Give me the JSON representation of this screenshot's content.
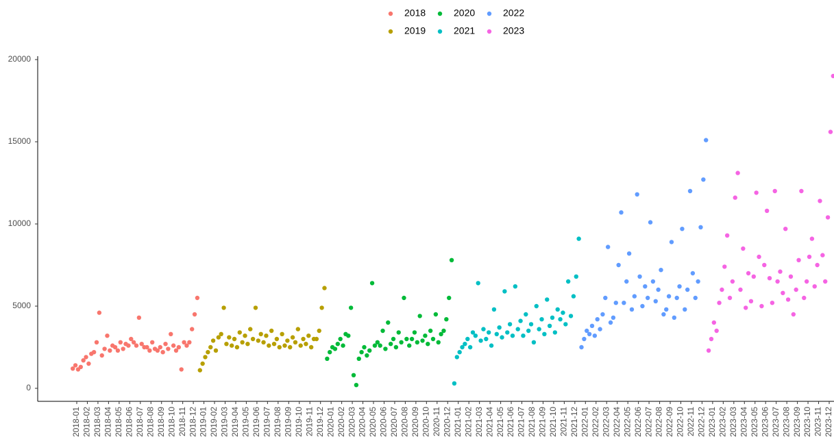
{
  "chart_data": {
    "type": "scatter",
    "xticks": [
      "2018-01",
      "2018-02",
      "2018-03",
      "2018-04",
      "2018-05",
      "2018-06",
      "2018-07",
      "2018-08",
      "2018-09",
      "2018-10",
      "2018-11",
      "2018-12",
      "2019-01",
      "2019-02",
      "2019-03",
      "2019-04",
      "2019-05",
      "2019-06",
      "2019-07",
      "2019-08",
      "2019-09",
      "2019-10",
      "2019-11",
      "2019-12",
      "2020-01",
      "2020-02",
      "2020-03",
      "2020-04",
      "2020-05",
      "2020-06",
      "2020-07",
      "2020-08",
      "2020-09",
      "2020-10",
      "2020-11",
      "2020-12",
      "2021-01",
      "2021-02",
      "2021-03",
      "2021-04",
      "2021-05",
      "2021-06",
      "2021-07",
      "2021-08",
      "2021-09",
      "2021-10",
      "2021-11",
      "2021-12",
      "2022-01",
      "2022-02",
      "2022-03",
      "2022-04",
      "2022-05",
      "2022-06",
      "2022-07",
      "2022-08",
      "2022-09",
      "2022-10",
      "2022-11",
      "2022-12",
      "2023-01",
      "2023-02",
      "2023-03",
      "2023-04",
      "2023-05",
      "2023-06",
      "2023-07",
      "2023-08",
      "2023-09",
      "2023-10",
      "2023-11",
      "2023-12"
    ],
    "ylim": [
      0,
      20000
    ],
    "yticks": [
      0,
      5000,
      10000,
      15000,
      20000
    ],
    "grid": false,
    "legend": "top",
    "series": [
      {
        "name": "2018",
        "color": "#F8766D",
        "x": [
          "2018-01",
          "2018-02",
          "2018-03",
          "2018-04",
          "2018-05",
          "2018-06",
          "2018-07",
          "2018-08",
          "2018-09",
          "2018-10",
          "2018-11",
          "2018-12"
        ],
        "values": [
          [
            1200,
            1400,
            1150,
            1300
          ],
          [
            1700,
            1900,
            1500,
            2100
          ],
          [
            2200,
            2800,
            4600,
            2000
          ],
          [
            2400,
            3200,
            2300,
            2600
          ],
          [
            2500,
            2300,
            2800,
            2400
          ],
          [
            2700,
            2600,
            3000,
            2800
          ],
          [
            2600,
            4300,
            2700,
            2500
          ],
          [
            2500,
            2300,
            2800,
            2400
          ],
          [
            2300,
            2500,
            2200,
            2700
          ],
          [
            2400,
            3300,
            2600,
            2300
          ],
          [
            2500,
            1150,
            2800,
            2600
          ],
          [
            2800,
            3600,
            4500,
            5500
          ]
        ]
      },
      {
        "name": "2019",
        "color": "#B79F00",
        "x": [
          "2019-01",
          "2019-02",
          "2019-03",
          "2019-04",
          "2019-05",
          "2019-06",
          "2019-07",
          "2019-08",
          "2019-09",
          "2019-10",
          "2019-11",
          "2019-12"
        ],
        "values": [
          [
            1100,
            1500,
            1900,
            2200
          ],
          [
            2500,
            2900,
            2300,
            3100
          ],
          [
            3300,
            4900,
            2700,
            3100
          ],
          [
            2600,
            3000,
            2500,
            3400
          ],
          [
            2800,
            3200,
            2700,
            3600
          ],
          [
            3000,
            4900,
            2900,
            3300
          ],
          [
            2800,
            3200,
            2600,
            3500
          ],
          [
            2700,
            3000,
            2500,
            3300
          ],
          [
            2600,
            2900,
            2500,
            3100
          ],
          [
            2800,
            3600,
            2600,
            3000
          ],
          [
            2700,
            3200,
            2500,
            3000
          ],
          [
            3000,
            3500,
            4900,
            6100
          ]
        ]
      },
      {
        "name": "2020",
        "color": "#00BA38",
        "x": [
          "2020-01",
          "2020-02",
          "2020-03",
          "2020-04",
          "2020-05",
          "2020-06",
          "2020-07",
          "2020-08",
          "2020-09",
          "2020-10",
          "2020-11",
          "2020-12"
        ],
        "values": [
          [
            1800,
            2200,
            2500,
            2400
          ],
          [
            2700,
            3000,
            2600,
            3300
          ],
          [
            3200,
            4900,
            800,
            200
          ],
          [
            1800,
            2200,
            2500,
            2000
          ],
          [
            2300,
            6400,
            2600,
            2800
          ],
          [
            2600,
            3500,
            2400,
            4000
          ],
          [
            2700,
            3000,
            2500,
            3400
          ],
          [
            2800,
            5500,
            3000,
            2600
          ],
          [
            3000,
            3400,
            2800,
            4400
          ],
          [
            2900,
            3200,
            2700,
            3500
          ],
          [
            3000,
            4500,
            2800,
            3300
          ],
          [
            3500,
            4200,
            5500,
            7800
          ]
        ]
      },
      {
        "name": "2021",
        "color": "#00BFC4",
        "x": [
          "2021-01",
          "2021-02",
          "2021-03",
          "2021-04",
          "2021-05",
          "2021-06",
          "2021-07",
          "2021-08",
          "2021-09",
          "2021-10",
          "2021-11",
          "2021-12"
        ],
        "values": [
          [
            300,
            1900,
            2200,
            2500
          ],
          [
            2700,
            3000,
            2500,
            3400
          ],
          [
            3200,
            6400,
            2900,
            3600
          ],
          [
            3000,
            3400,
            2600,
            4800
          ],
          [
            3300,
            3700,
            3100,
            5900
          ],
          [
            3400,
            3900,
            3200,
            6200
          ],
          [
            3600,
            4100,
            3200,
            4500
          ],
          [
            3500,
            3900,
            2800,
            5000
          ],
          [
            3600,
            4200,
            3300,
            5400
          ],
          [
            3800,
            4300,
            3400,
            4800
          ],
          [
            4200,
            4600,
            3900,
            6500
          ],
          [
            4400,
            5600,
            6800,
            9100
          ]
        ]
      },
      {
        "name": "2022",
        "color": "#619CFF",
        "x": [
          "2022-01",
          "2022-02",
          "2022-03",
          "2022-04",
          "2022-05",
          "2022-06",
          "2022-07",
          "2022-08",
          "2022-09",
          "2022-10",
          "2022-11",
          "2022-12"
        ],
        "values": [
          [
            2500,
            3000,
            3500,
            3300
          ],
          [
            3800,
            3200,
            4200,
            3600
          ],
          [
            4500,
            5500,
            8600,
            4000
          ],
          [
            4300,
            5200,
            7500,
            10700
          ],
          [
            5200,
            6500,
            8200,
            4800
          ],
          [
            5600,
            11800,
            6800,
            5000
          ],
          [
            6200,
            5500,
            10100,
            6500
          ],
          [
            5300,
            6000,
            7200,
            4500
          ],
          [
            4800,
            5600,
            8900,
            4300
          ],
          [
            5500,
            6200,
            9700,
            4800
          ],
          [
            6000,
            12000,
            7000,
            5500
          ],
          [
            6500,
            9800,
            12700,
            15100
          ]
        ]
      },
      {
        "name": "2023",
        "color": "#F564E3",
        "x": [
          "2023-01",
          "2023-02",
          "2023-03",
          "2023-04",
          "2023-05",
          "2023-06",
          "2023-07",
          "2023-08",
          "2023-09",
          "2023-10",
          "2023-11",
          "2023-12"
        ],
        "values": [
          [
            2300,
            3000,
            4000,
            3500
          ],
          [
            5200,
            6000,
            7400,
            9300
          ],
          [
            5500,
            6500,
            11600,
            13100
          ],
          [
            6000,
            8500,
            4900,
            7000
          ],
          [
            5300,
            6800,
            11900,
            8000
          ],
          [
            5000,
            7500,
            10800,
            6700
          ],
          [
            5200,
            12000,
            6500,
            7100
          ],
          [
            5800,
            9700,
            5400,
            6800
          ],
          [
            4500,
            6000,
            7800,
            12000
          ],
          [
            5500,
            6500,
            8000,
            9100
          ],
          [
            6200,
            7500,
            11400,
            8100
          ],
          [
            6500,
            10400,
            15600,
            19000
          ]
        ]
      }
    ]
  }
}
